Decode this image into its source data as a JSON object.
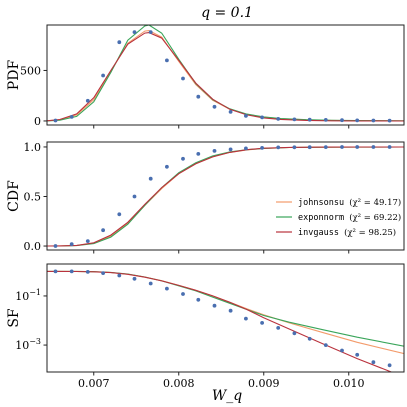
{
  "figure": {
    "title": "q = 0.1",
    "xlabel": "W_q"
  },
  "colors": {
    "johnsonsu": "#f39b6b",
    "exponnorm": "#3aa55a",
    "invgauss": "#b9323d",
    "empirical": "#4a6fb0",
    "frame": "#222222"
  },
  "legend": {
    "position": "right, in CDF panel",
    "entries": [
      {
        "dist": "johnsonsu",
        "stat": "(χ² = 49.17)",
        "color": "#f39b6b"
      },
      {
        "dist": "exponnorm",
        "stat": "(χ² = 69.22)",
        "color": "#3aa55a"
      },
      {
        "dist": "invgauss",
        "stat": "(χ² = 98.25)",
        "color": "#b9323d"
      }
    ]
  },
  "chart_data": [
    {
      "type": "line",
      "ylabel": "PDF",
      "xlim": [
        0.00645,
        0.01065
      ],
      "ylim": [
        -40,
        950
      ],
      "yticks": [
        0,
        500
      ],
      "xticks": [
        0.007,
        0.008,
        0.009,
        0.01
      ],
      "xtick_labels": [
        "0.007",
        "0.008",
        "0.009",
        "0.010"
      ],
      "show_xtick_labels": false,
      "empirical": {
        "x": [
          0.00655,
          0.00674,
          0.00693,
          0.00711,
          0.0073,
          0.00748,
          0.00767,
          0.00786,
          0.00805,
          0.00823,
          0.00842,
          0.00861,
          0.00879,
          0.00898,
          0.00917,
          0.00936,
          0.00954,
          0.00973,
          0.00992,
          0.0101,
          0.01029,
          0.01048
        ],
        "y": [
          5,
          40,
          200,
          450,
          780,
          880,
          880,
          600,
          420,
          240,
          140,
          90,
          50,
          35,
          20,
          15,
          12,
          10,
          8,
          6,
          5,
          4
        ]
      },
      "series": [
        {
          "name": "johnsonsu",
          "x": [
            0.00645,
            0.0066,
            0.0068,
            0.007,
            0.0072,
            0.0074,
            0.0076,
            0.00765,
            0.0078,
            0.008,
            0.0082,
            0.0084,
            0.0086,
            0.0088,
            0.009,
            0.0092,
            0.0095,
            0.0098,
            0.0101,
            0.01065
          ],
          "y": [
            2,
            12,
            60,
            210,
            490,
            770,
            890,
            895,
            830,
            590,
            360,
            205,
            115,
            65,
            38,
            22,
            11,
            6,
            3,
            1
          ]
        },
        {
          "name": "exponnorm",
          "x": [
            0.00645,
            0.0066,
            0.0068,
            0.007,
            0.0072,
            0.0074,
            0.0076,
            0.00765,
            0.0078,
            0.008,
            0.0082,
            0.0084,
            0.0086,
            0.0088,
            0.009,
            0.0092,
            0.0095,
            0.0098,
            0.0101,
            0.01065
          ],
          "y": [
            1,
            8,
            45,
            190,
            480,
            800,
            940,
            950,
            870,
            610,
            370,
            210,
            120,
            68,
            40,
            24,
            12,
            7,
            4,
            2
          ]
        },
        {
          "name": "invgauss",
          "x": [
            0.00645,
            0.0066,
            0.0068,
            0.007,
            0.0072,
            0.0074,
            0.0076,
            0.00765,
            0.0078,
            0.008,
            0.0082,
            0.0084,
            0.0086,
            0.0088,
            0.009,
            0.0092,
            0.0095,
            0.0098,
            0.0101,
            0.01065
          ],
          "y": [
            2,
            14,
            70,
            230,
            500,
            760,
            870,
            875,
            820,
            600,
            375,
            215,
            115,
            60,
            30,
            15,
            6,
            2,
            1,
            0
          ]
        }
      ]
    },
    {
      "type": "line",
      "ylabel": "CDF",
      "xlim": [
        0.00645,
        0.01065
      ],
      "ylim": [
        -0.04,
        1.05
      ],
      "yticks": [
        0.0,
        0.5,
        1.0
      ],
      "ytick_labels": [
        "0.0",
        "0.5",
        "1.0"
      ],
      "xticks": [
        0.007,
        0.008,
        0.009,
        0.01
      ],
      "xtick_labels": [
        "0.007",
        "0.008",
        "0.009",
        "0.010"
      ],
      "show_xtick_labels": false,
      "empirical": {
        "x": [
          0.00655,
          0.00674,
          0.00693,
          0.00711,
          0.0073,
          0.00748,
          0.00767,
          0.00786,
          0.00805,
          0.00823,
          0.00842,
          0.00861,
          0.00879,
          0.00898,
          0.00917,
          0.00936,
          0.00954,
          0.00973,
          0.00992,
          0.0101,
          0.01029,
          0.01048
        ],
        "y": [
          0.0,
          0.02,
          0.05,
          0.16,
          0.32,
          0.5,
          0.68,
          0.8,
          0.88,
          0.93,
          0.96,
          0.975,
          0.985,
          0.99,
          0.995,
          0.997,
          0.998,
          0.999,
          1.0,
          1.0,
          1.0,
          1.0
        ]
      },
      "series": [
        {
          "name": "johnsonsu",
          "x": [
            0.00645,
            0.0066,
            0.0068,
            0.007,
            0.0072,
            0.0074,
            0.0076,
            0.0078,
            0.008,
            0.0082,
            0.0084,
            0.0086,
            0.0088,
            0.009,
            0.0093,
            0.0097,
            0.0101,
            0.01065
          ],
          "y": [
            0.0,
            0.001,
            0.005,
            0.03,
            0.1,
            0.23,
            0.41,
            0.58,
            0.73,
            0.83,
            0.9,
            0.945,
            0.97,
            0.985,
            0.994,
            0.998,
            0.999,
            1.0
          ]
        },
        {
          "name": "exponnorm",
          "x": [
            0.00645,
            0.0066,
            0.0068,
            0.007,
            0.0072,
            0.0074,
            0.0076,
            0.0078,
            0.008,
            0.0082,
            0.0084,
            0.0086,
            0.0088,
            0.009,
            0.0093,
            0.0097,
            0.0101,
            0.01065
          ],
          "y": [
            0.0,
            0.0,
            0.004,
            0.025,
            0.09,
            0.22,
            0.41,
            0.59,
            0.74,
            0.84,
            0.91,
            0.95,
            0.972,
            0.985,
            0.994,
            0.998,
            0.999,
            1.0
          ]
        },
        {
          "name": "invgauss",
          "x": [
            0.00645,
            0.0066,
            0.0068,
            0.007,
            0.0072,
            0.0074,
            0.0076,
            0.0078,
            0.008,
            0.0082,
            0.0084,
            0.0086,
            0.0088,
            0.009,
            0.0093,
            0.0097,
            0.0101,
            0.01065
          ],
          "y": [
            0.0,
            0.001,
            0.006,
            0.033,
            0.11,
            0.24,
            0.42,
            0.59,
            0.73,
            0.83,
            0.9,
            0.945,
            0.972,
            0.987,
            0.996,
            0.999,
            1.0,
            1.0
          ]
        }
      ]
    },
    {
      "type": "line",
      "ylabel": "SF",
      "yscale": "log",
      "xlim": [
        0.00645,
        0.01065
      ],
      "ylim": [
        8e-05,
        2.0
      ],
      "yticks": [
        0.1,
        0.001
      ],
      "ytick_labels": [
        "10^-1",
        "10^-3"
      ],
      "xticks": [
        0.007,
        0.008,
        0.009,
        0.01
      ],
      "xtick_labels": [
        "0.007",
        "0.008",
        "0.009",
        "0.010"
      ],
      "show_xtick_labels": true,
      "empirical": {
        "x": [
          0.00655,
          0.00674,
          0.00693,
          0.00711,
          0.0073,
          0.00748,
          0.00767,
          0.00786,
          0.00805,
          0.00823,
          0.00842,
          0.00861,
          0.00879,
          0.00898,
          0.00917,
          0.00936,
          0.00954,
          0.00973,
          0.00992,
          0.0101,
          0.01029,
          0.01048
        ],
        "y": [
          1.0,
          1.0,
          0.95,
          0.85,
          0.68,
          0.5,
          0.32,
          0.2,
          0.12,
          0.07,
          0.04,
          0.025,
          0.012,
          0.008,
          0.005,
          0.003,
          0.0018,
          0.001,
          0.0006,
          0.0004,
          0.0002,
          0.00015
        ]
      },
      "series": [
        {
          "name": "johnsonsu",
          "x": [
            0.00645,
            0.0066,
            0.0068,
            0.007,
            0.0072,
            0.0074,
            0.0076,
            0.0078,
            0.008,
            0.0082,
            0.0084,
            0.0086,
            0.0088,
            0.009,
            0.0093,
            0.0097,
            0.0101,
            0.01065
          ],
          "y": [
            1.0,
            0.999,
            0.995,
            0.97,
            0.9,
            0.77,
            0.59,
            0.42,
            0.27,
            0.17,
            0.1,
            0.055,
            0.03,
            0.017,
            0.008,
            0.0032,
            0.0013,
            0.00045
          ]
        },
        {
          "name": "exponnorm",
          "x": [
            0.00645,
            0.0066,
            0.0068,
            0.007,
            0.0072,
            0.0074,
            0.0076,
            0.0078,
            0.008,
            0.0082,
            0.0084,
            0.0086,
            0.0088,
            0.009,
            0.0093,
            0.0097,
            0.0101,
            0.01065
          ],
          "y": [
            1.0,
            1.0,
            0.996,
            0.975,
            0.91,
            0.78,
            0.59,
            0.41,
            0.26,
            0.16,
            0.09,
            0.05,
            0.028,
            0.016,
            0.0085,
            0.0042,
            0.0021,
            0.0009
          ]
        },
        {
          "name": "invgauss",
          "x": [
            0.00645,
            0.0066,
            0.0068,
            0.007,
            0.0072,
            0.0074,
            0.0076,
            0.0078,
            0.008,
            0.0082,
            0.0084,
            0.0086,
            0.0088,
            0.009,
            0.0093,
            0.0097,
            0.0101,
            0.01065
          ],
          "y": [
            1.0,
            0.999,
            0.994,
            0.967,
            0.89,
            0.76,
            0.58,
            0.41,
            0.27,
            0.17,
            0.1,
            0.055,
            0.028,
            0.013,
            0.0045,
            0.0011,
            0.00028,
            5e-05
          ]
        }
      ]
    }
  ]
}
